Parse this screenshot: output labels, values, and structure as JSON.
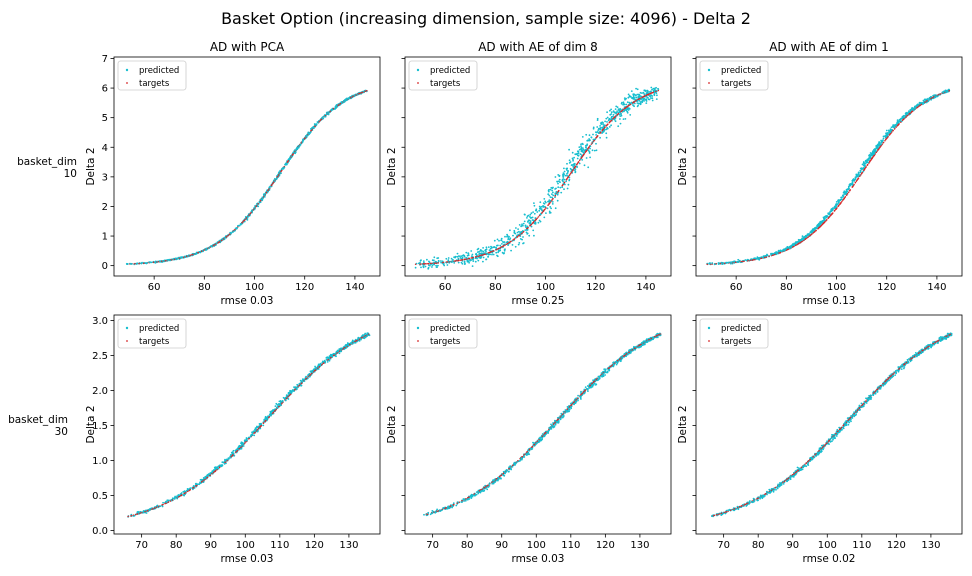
{
  "figure": {
    "title": "Basket Option (increasing dimension, sample size: 4096) - Delta 2",
    "row_labels": [
      [
        "basket_dim",
        "10"
      ],
      [
        "basket_dim",
        "30"
      ]
    ],
    "legend": {
      "predicted": "predicted",
      "targets": "targets"
    },
    "colors": {
      "predicted": "#17becf",
      "targets": "#d62728"
    }
  },
  "chart_data": [
    {
      "type": "scatter",
      "title": "AD with PCA",
      "xlabel": "rmse 0.03",
      "ylabel": "Delta 2",
      "xlim": [
        44,
        150
      ],
      "ylim": [
        -0.35,
        7.05
      ],
      "xticks": [
        60,
        80,
        100,
        120,
        140
      ],
      "yticks": [
        0,
        1,
        2,
        3,
        4,
        5,
        6,
        7
      ],
      "x_range": [
        48,
        145
      ],
      "target_curve": {
        "L": 6.3,
        "x0": 110.3,
        "k": 0.079
      },
      "predicted_spread": 0.03,
      "legend_position": "top-left",
      "series": [
        {
          "name": "predicted"
        },
        {
          "name": "targets"
        }
      ]
    },
    {
      "type": "scatter",
      "title": "AD with AE of dim 8",
      "xlabel": "rmse 0.25",
      "ylabel": "Delta 2",
      "xlim": [
        44,
        150
      ],
      "ylim": [
        -0.35,
        7.05
      ],
      "xticks": [
        60,
        80,
        100,
        120,
        140
      ],
      "yticks": [
        0,
        1,
        2,
        3,
        4,
        5,
        6,
        7
      ],
      "x_range": [
        48,
        145
      ],
      "target_curve": {
        "L": 6.3,
        "x0": 110.3,
        "k": 0.079
      },
      "predicted_spread": 0.25,
      "predicted_bias": 0.3,
      "legend_position": "top-left",
      "series": [
        {
          "name": "predicted"
        },
        {
          "name": "targets"
        }
      ]
    },
    {
      "type": "scatter",
      "title": "AD with AE of dim 1",
      "xlabel": "rmse 0.13",
      "ylabel": "Delta 2",
      "xlim": [
        44,
        150
      ],
      "ylim": [
        -0.35,
        7.05
      ],
      "xticks": [
        60,
        80,
        100,
        120,
        140
      ],
      "yticks": [
        0,
        1,
        2,
        3,
        4,
        5,
        6,
        7
      ],
      "x_range": [
        48,
        145
      ],
      "target_curve": {
        "L": 6.3,
        "x0": 110.3,
        "k": 0.079
      },
      "predicted_spread": 0.05,
      "predicted_bias": 0.35,
      "legend_position": "top-left",
      "series": [
        {
          "name": "predicted"
        },
        {
          "name": "targets"
        }
      ]
    },
    {
      "type": "scatter",
      "title": "",
      "xlabel": "rmse 0.03",
      "ylabel": "Delta 2",
      "xlim": [
        62,
        139
      ],
      "ylim": [
        -0.05,
        3.08
      ],
      "xticks": [
        70,
        80,
        90,
        100,
        110,
        120,
        130
      ],
      "yticks": [
        0.0,
        0.5,
        1.0,
        1.5,
        2.0,
        2.5,
        3.0
      ],
      "x_range": [
        66,
        136
      ],
      "target_curve": {
        "L": 3.2,
        "x0": 106.5,
        "k": 0.067
      },
      "predicted_spread": 0.02,
      "predicted_bias": 0.06,
      "legend_position": "top-left",
      "series": [
        {
          "name": "predicted"
        },
        {
          "name": "targets"
        }
      ]
    },
    {
      "type": "scatter",
      "title": "",
      "xlabel": "rmse 0.03",
      "ylabel": "Delta 2",
      "xlim": [
        62,
        139
      ],
      "ylim": [
        -0.05,
        3.08
      ],
      "xticks": [
        70,
        80,
        90,
        100,
        110,
        120,
        130
      ],
      "yticks": [
        0.0,
        0.5,
        1.0,
        1.5,
        2.0,
        2.5,
        3.0
      ],
      "x_range": [
        66,
        136
      ],
      "target_curve": {
        "L": 3.2,
        "x0": 106.5,
        "k": 0.067
      },
      "predicted_spread": 0.02,
      "predicted_bias": -0.05,
      "legend_position": "top-left",
      "series": [
        {
          "name": "predicted"
        },
        {
          "name": "targets"
        }
      ]
    },
    {
      "type": "scatter",
      "title": "",
      "xlabel": "rmse 0.02",
      "ylabel": "Delta 2",
      "xlim": [
        62,
        139
      ],
      "ylim": [
        -0.05,
        3.08
      ],
      "xticks": [
        70,
        80,
        90,
        100,
        110,
        120,
        130
      ],
      "yticks": [
        0.0,
        0.5,
        1.0,
        1.5,
        2.0,
        2.5,
        3.0
      ],
      "x_range": [
        66,
        136
      ],
      "target_curve": {
        "L": 3.2,
        "x0": 106.5,
        "k": 0.067
      },
      "predicted_spread": 0.02,
      "predicted_bias": -0.05,
      "legend_position": "top-left",
      "series": [
        {
          "name": "predicted"
        },
        {
          "name": "targets"
        }
      ]
    }
  ]
}
